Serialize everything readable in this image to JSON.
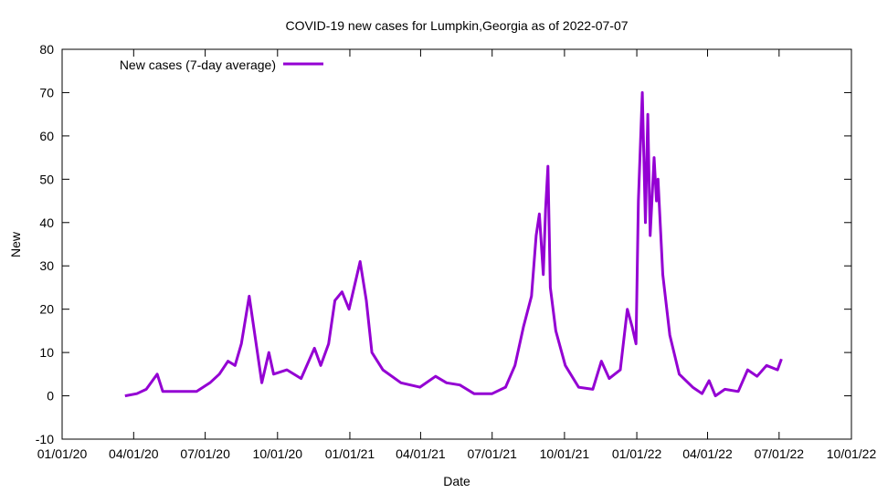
{
  "chart_data": {
    "type": "line",
    "title": "COVID-19 new cases for Lumpkin,Georgia as of 2022-07-07",
    "xlabel": "Date",
    "ylabel": "New",
    "xlim": [
      "2020-01-01",
      "2022-10-01"
    ],
    "ylim": [
      -10,
      80
    ],
    "yticks": [
      -10,
      0,
      10,
      20,
      30,
      40,
      50,
      60,
      70,
      80
    ],
    "xticks": [
      {
        "date": "2020-01-01",
        "label": "01/01/20"
      },
      {
        "date": "2020-04-01",
        "label": "04/01/20"
      },
      {
        "date": "2020-07-01",
        "label": "07/01/20"
      },
      {
        "date": "2020-10-01",
        "label": "10/01/20"
      },
      {
        "date": "2021-01-01",
        "label": "01/01/21"
      },
      {
        "date": "2021-04-01",
        "label": "04/01/21"
      },
      {
        "date": "2021-07-01",
        "label": "07/01/21"
      },
      {
        "date": "2021-10-01",
        "label": "10/01/21"
      },
      {
        "date": "2022-01-01",
        "label": "01/01/22"
      },
      {
        "date": "2022-04-01",
        "label": "04/01/22"
      },
      {
        "date": "2022-07-01",
        "label": "07/01/22"
      },
      {
        "date": "2022-10-01",
        "label": "10/01/22"
      }
    ],
    "grid": false,
    "legend_position": "top-left",
    "series": [
      {
        "name": "New cases (7-day average)",
        "color": "#9400d3",
        "points": [
          [
            "2020-03-21",
            0
          ],
          [
            "2020-04-05",
            0.5
          ],
          [
            "2020-04-17",
            1.5
          ],
          [
            "2020-05-01",
            5
          ],
          [
            "2020-05-08",
            1
          ],
          [
            "2020-06-02",
            1
          ],
          [
            "2020-06-20",
            1
          ],
          [
            "2020-07-07",
            3
          ],
          [
            "2020-07-19",
            5
          ],
          [
            "2020-07-30",
            8
          ],
          [
            "2020-08-08",
            7
          ],
          [
            "2020-08-16",
            12
          ],
          [
            "2020-08-26",
            23
          ],
          [
            "2020-09-03",
            13
          ],
          [
            "2020-09-11",
            3
          ],
          [
            "2020-09-20",
            10
          ],
          [
            "2020-09-26",
            5
          ],
          [
            "2020-10-13",
            6
          ],
          [
            "2020-10-31",
            4
          ],
          [
            "2020-11-17",
            11
          ],
          [
            "2020-11-25",
            7
          ],
          [
            "2020-12-05",
            12
          ],
          [
            "2020-12-13",
            22
          ],
          [
            "2020-12-22",
            24
          ],
          [
            "2020-12-31",
            20
          ],
          [
            "2021-01-14",
            31
          ],
          [
            "2021-01-22",
            22
          ],
          [
            "2021-01-29",
            10
          ],
          [
            "2021-02-12",
            6
          ],
          [
            "2021-03-07",
            3
          ],
          [
            "2021-03-31",
            2
          ],
          [
            "2021-04-20",
            4.5
          ],
          [
            "2021-05-04",
            3
          ],
          [
            "2021-05-21",
            2.5
          ],
          [
            "2021-06-08",
            0.5
          ],
          [
            "2021-07-01",
            0.5
          ],
          [
            "2021-07-18",
            2
          ],
          [
            "2021-07-30",
            7
          ],
          [
            "2021-08-10",
            16
          ],
          [
            "2021-08-20",
            23
          ],
          [
            "2021-08-26",
            37
          ],
          [
            "2021-08-30",
            42
          ],
          [
            "2021-09-04",
            28
          ],
          [
            "2021-09-07",
            43
          ],
          [
            "2021-09-10",
            53
          ],
          [
            "2021-09-13",
            25
          ],
          [
            "2021-09-20",
            15
          ],
          [
            "2021-10-02",
            7
          ],
          [
            "2021-10-19",
            2
          ],
          [
            "2021-11-06",
            1.5
          ],
          [
            "2021-11-17",
            8
          ],
          [
            "2021-11-27",
            4
          ],
          [
            "2021-12-11",
            6
          ],
          [
            "2021-12-20",
            20
          ],
          [
            "2021-12-26",
            16
          ],
          [
            "2021-12-31",
            12
          ],
          [
            "2022-01-03",
            45
          ],
          [
            "2022-01-08",
            70
          ],
          [
            "2022-01-12",
            40
          ],
          [
            "2022-01-15",
            65
          ],
          [
            "2022-01-18",
            37
          ],
          [
            "2022-01-23",
            55
          ],
          [
            "2022-01-26",
            45
          ],
          [
            "2022-01-28",
            50
          ],
          [
            "2022-02-03",
            28
          ],
          [
            "2022-02-12",
            14
          ],
          [
            "2022-02-24",
            5
          ],
          [
            "2022-03-13",
            2
          ],
          [
            "2022-03-25",
            0.5
          ],
          [
            "2022-04-03",
            3.5
          ],
          [
            "2022-04-11",
            0
          ],
          [
            "2022-04-23",
            1.5
          ],
          [
            "2022-05-10",
            1
          ],
          [
            "2022-05-22",
            6
          ],
          [
            "2022-06-03",
            4.5
          ],
          [
            "2022-06-15",
            7
          ],
          [
            "2022-06-29",
            6
          ],
          [
            "2022-07-04",
            8.5
          ]
        ]
      }
    ]
  }
}
